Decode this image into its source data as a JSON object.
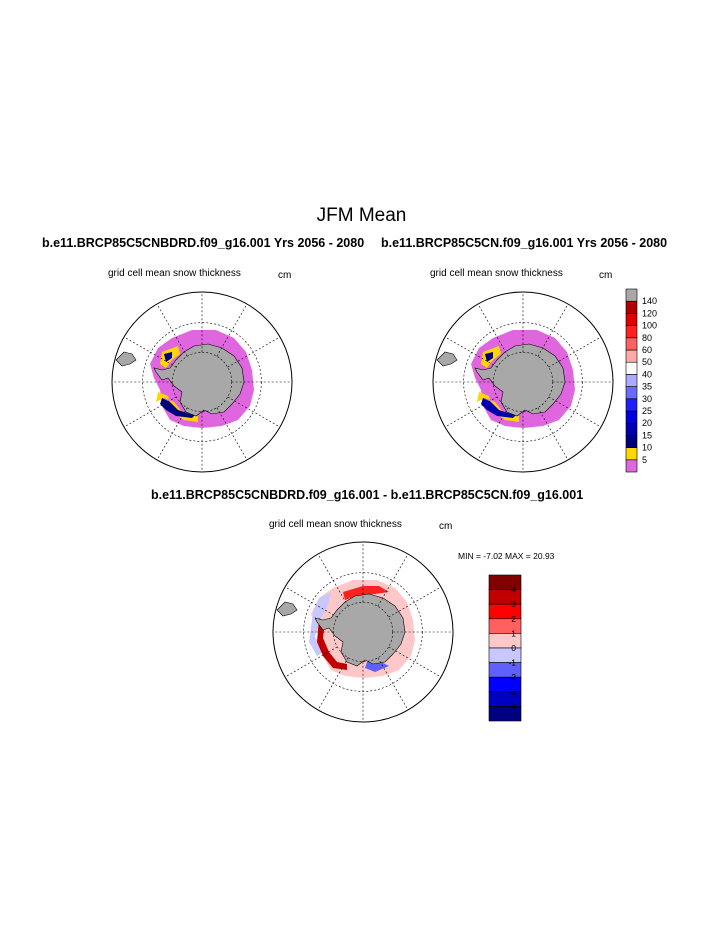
{
  "figure": {
    "title": "JFM Mean"
  },
  "chart_data": [
    {
      "type": "heatmap",
      "projection": "south-polar-stereographic",
      "title": "b.e11.BRCP85C5CNBDRD.f09_g16.001  Yrs 2056 - 2080",
      "variable_label": "grid cell mean snow thickness",
      "units": "cm",
      "colorbar_levels": [
        5,
        10,
        15,
        20,
        25,
        30,
        35,
        40,
        50,
        60,
        80,
        100,
        120,
        140
      ],
      "colorbar_colors": [
        "#e066e0",
        "#ffd700",
        "#00007f",
        "#0000b0",
        "#0000e0",
        "#2020ff",
        "#6a6aff",
        "#aaaaff",
        "#ffffff",
        "#ffaaaa",
        "#ff6060",
        "#ff2020",
        "#e00000",
        "#b00000",
        "#a8a8a8"
      ]
    },
    {
      "type": "heatmap",
      "projection": "south-polar-stereographic",
      "title": "b.e11.BRCP85C5CN.f09_g16.001  Yrs 2056 - 2080",
      "variable_label": "grid cell mean snow thickness",
      "units": "cm",
      "colorbar_levels": [
        5,
        10,
        15,
        20,
        25,
        30,
        35,
        40,
        50,
        60,
        80,
        100,
        120,
        140
      ]
    },
    {
      "type": "heatmap",
      "projection": "south-polar-stereographic",
      "title": "b.e11.BRCP85C5CNBDRD.f09_g16.001 - b.e11.BRCP85C5CN.f09_g16.001",
      "variable_label": "grid cell mean snow thickness",
      "units": "cm",
      "stats": {
        "min_label": "MIN = ",
        "min": "-7.02",
        "max_label": "MAX = ",
        "max": "20.93"
      },
      "colorbar_levels": [
        4,
        3,
        2,
        1,
        0,
        -1,
        -2,
        -3,
        -4
      ],
      "colorbar_colors": [
        "#800000",
        "#c00000",
        "#ff0000",
        "#ff6060",
        "#ffc8c8",
        "#c8c8ff",
        "#6060ff",
        "#0000ff",
        "#0000c0",
        "#000080"
      ]
    }
  ]
}
